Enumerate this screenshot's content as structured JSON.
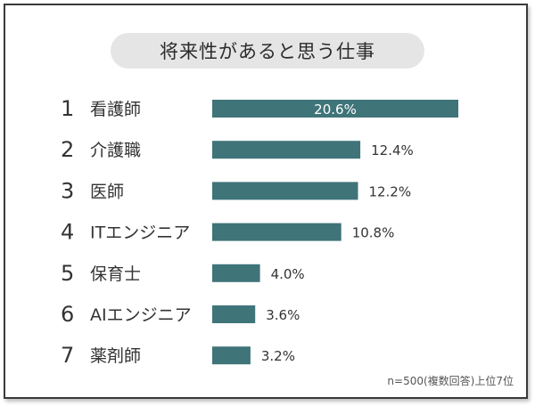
{
  "chart_data": {
    "type": "bar",
    "orientation": "horizontal",
    "title": "将来性があると思う仕事",
    "note": "n=500(複数回答)上位7位",
    "bar_color": "#3f7479",
    "items": [
      {
        "rank": "1",
        "category": "看護師",
        "value": 20.6,
        "label": "20.6%",
        "label_inside": true
      },
      {
        "rank": "2",
        "category": "介護職",
        "value": 12.4,
        "label": "12.4%",
        "label_inside": false
      },
      {
        "rank": "3",
        "category": "医師",
        "value": 12.2,
        "label": "12.2%",
        "label_inside": false
      },
      {
        "rank": "4",
        "category": "ITエンジニア",
        "value": 10.8,
        "label": "10.8%",
        "label_inside": false
      },
      {
        "rank": "5",
        "category": "保育士",
        "value": 4.0,
        "label": "4.0%",
        "label_inside": false
      },
      {
        "rank": "6",
        "category": "AIエンジニア",
        "value": 3.6,
        "label": "3.6%",
        "label_inside": false
      },
      {
        "rank": "7",
        "category": "薬剤師",
        "value": 3.2,
        "label": "3.2%",
        "label_inside": false
      }
    ]
  }
}
